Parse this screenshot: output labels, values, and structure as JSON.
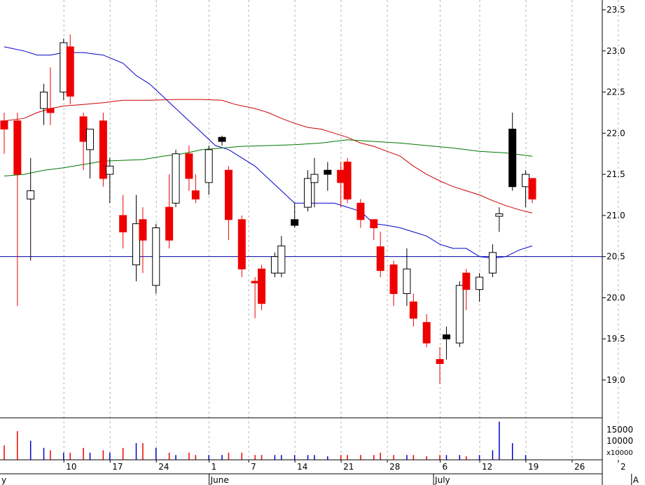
{
  "chart_data": {
    "type": "candlestick",
    "title": "",
    "xlabel": "",
    "ylabel": "",
    "y_ticks": [
      "19.0",
      "19.5",
      "20.0",
      "20.5",
      "21.0",
      "21.5",
      "22.0",
      "22.5",
      "23.0",
      "23.5"
    ],
    "ylim": [
      18.6,
      23.6
    ],
    "day_ticks": [
      {
        "label": "10",
        "x": 10
      },
      {
        "label": "17",
        "x": 17
      },
      {
        "label": "24",
        "x": 24
      },
      {
        "label": "1",
        "x": 32
      },
      {
        "label": "7",
        "x": 38
      },
      {
        "label": "14",
        "x": 45
      },
      {
        "label": "21",
        "x": 52
      },
      {
        "label": "28",
        "x": 59
      },
      {
        "label": "6",
        "x": 67
      },
      {
        "label": "12",
        "x": 73
      },
      {
        "label": "19",
        "x": 80
      },
      {
        "label": "26",
        "x": 87
      },
      {
        "label": "2",
        "x": 94
      }
    ],
    "month_labels": [
      {
        "label": "y",
        "x": 0
      },
      {
        "label": "June",
        "x": 32
      },
      {
        "label": "July",
        "x": 66
      },
      {
        "label": "A",
        "x": 96
      }
    ],
    "horizontal_line": 20.5,
    "candles": [
      {
        "x": 0,
        "o": 22.05,
        "h": 22.25,
        "l": 21.75,
        "c": 22.15,
        "color": "red"
      },
      {
        "x": 2,
        "o": 22.15,
        "h": 22.25,
        "l": 19.9,
        "c": 21.5,
        "color": "red"
      },
      {
        "x": 4,
        "o": 21.2,
        "h": 21.7,
        "l": 20.45,
        "c": 21.3,
        "color": "white"
      },
      {
        "x": 6,
        "o": 22.3,
        "h": 22.6,
        "l": 22.1,
        "c": 22.5,
        "color": "white"
      },
      {
        "x": 7,
        "o": 22.3,
        "h": 22.8,
        "l": 22.1,
        "c": 22.25,
        "color": "red"
      },
      {
        "x": 9,
        "o": 22.5,
        "h": 23.15,
        "l": 22.4,
        "c": 23.1,
        "color": "white"
      },
      {
        "x": 10,
        "o": 23.05,
        "h": 23.2,
        "l": 22.35,
        "c": 22.45,
        "color": "red"
      },
      {
        "x": 12,
        "o": 22.2,
        "h": 22.25,
        "l": 21.55,
        "c": 21.9,
        "color": "red"
      },
      {
        "x": 13,
        "o": 21.8,
        "h": 22.05,
        "l": 21.45,
        "c": 22.05,
        "color": "white"
      },
      {
        "x": 15,
        "o": 22.15,
        "h": 22.25,
        "l": 21.35,
        "c": 21.45,
        "color": "red"
      },
      {
        "x": 16,
        "o": 21.5,
        "h": 21.7,
        "l": 21.15,
        "c": 21.6,
        "color": "white"
      },
      {
        "x": 18,
        "o": 21.0,
        "h": 21.25,
        "l": 20.6,
        "c": 20.8,
        "color": "red"
      },
      {
        "x": 20,
        "o": 20.4,
        "h": 21.25,
        "l": 20.2,
        "c": 20.9,
        "color": "white"
      },
      {
        "x": 21,
        "o": 20.95,
        "h": 21.1,
        "l": 20.3,
        "c": 20.7,
        "color": "red"
      },
      {
        "x": 23,
        "o": 20.15,
        "h": 20.9,
        "l": 20.05,
        "c": 20.85,
        "color": "white"
      },
      {
        "x": 25,
        "o": 21.1,
        "h": 21.5,
        "l": 20.6,
        "c": 20.7,
        "color": "red"
      },
      {
        "x": 26,
        "o": 21.15,
        "h": 21.8,
        "l": 21.1,
        "c": 21.75,
        "color": "white"
      },
      {
        "x": 28,
        "o": 21.75,
        "h": 21.85,
        "l": 21.3,
        "c": 21.45,
        "color": "red"
      },
      {
        "x": 29,
        "o": 21.3,
        "h": 21.5,
        "l": 21.15,
        "c": 21.2,
        "color": "red"
      },
      {
        "x": 31,
        "o": 21.4,
        "h": 21.85,
        "l": 21.25,
        "c": 21.8,
        "color": "white"
      },
      {
        "x": 33,
        "o": 21.9,
        "h": 21.97,
        "l": 21.85,
        "c": 21.95,
        "color": "black"
      },
      {
        "x": 34,
        "o": 21.55,
        "h": 21.6,
        "l": 20.7,
        "c": 20.95,
        "color": "red"
      },
      {
        "x": 36,
        "o": 20.95,
        "h": 21.0,
        "l": 20.25,
        "c": 20.35,
        "color": "red"
      },
      {
        "x": 38,
        "o": 20.2,
        "h": 20.25,
        "l": 19.75,
        "c": 20.18,
        "color": "red"
      },
      {
        "x": 39,
        "o": 20.35,
        "h": 20.4,
        "l": 19.85,
        "c": 19.93,
        "color": "red"
      },
      {
        "x": 41,
        "o": 20.3,
        "h": 20.55,
        "l": 20.25,
        "c": 20.5,
        "color": "white"
      },
      {
        "x": 42,
        "o": 20.3,
        "h": 20.75,
        "l": 20.25,
        "c": 20.63,
        "color": "white"
      },
      {
        "x": 44,
        "o": 20.95,
        "h": 21.15,
        "l": 20.85,
        "c": 20.88,
        "color": "black"
      },
      {
        "x": 46,
        "o": 21.1,
        "h": 21.55,
        "l": 21.05,
        "c": 21.45,
        "color": "white"
      },
      {
        "x": 47,
        "o": 21.4,
        "h": 21.7,
        "l": 21.1,
        "c": 21.5,
        "color": "white"
      },
      {
        "x": 49,
        "o": 21.55,
        "h": 21.65,
        "l": 21.3,
        "c": 21.5,
        "color": "black"
      },
      {
        "x": 51,
        "o": 21.55,
        "h": 21.65,
        "l": 21.1,
        "c": 21.4,
        "color": "red"
      },
      {
        "x": 52,
        "o": 21.65,
        "h": 21.7,
        "l": 21.15,
        "c": 21.2,
        "color": "red"
      },
      {
        "x": 54,
        "o": 21.15,
        "h": 21.2,
        "l": 20.85,
        "c": 20.95,
        "color": "red"
      },
      {
        "x": 56,
        "o": 20.95,
        "h": 20.95,
        "l": 20.7,
        "c": 20.85,
        "color": "red"
      },
      {
        "x": 57,
        "o": 20.62,
        "h": 20.8,
        "l": 20.25,
        "c": 20.33,
        "color": "red"
      },
      {
        "x": 59,
        "o": 20.4,
        "h": 20.45,
        "l": 19.9,
        "c": 20.05,
        "color": "red"
      },
      {
        "x": 61,
        "o": 20.05,
        "h": 20.6,
        "l": 19.9,
        "c": 20.35,
        "color": "white"
      },
      {
        "x": 62,
        "o": 19.95,
        "h": 20.05,
        "l": 19.65,
        "c": 19.75,
        "color": "red"
      },
      {
        "x": 64,
        "o": 19.7,
        "h": 19.8,
        "l": 19.4,
        "c": 19.45,
        "color": "red"
      },
      {
        "x": 66,
        "o": 19.25,
        "h": 19.4,
        "l": 18.95,
        "c": 19.2,
        "color": "red"
      },
      {
        "x": 67,
        "o": 19.5,
        "h": 19.65,
        "l": 19.25,
        "c": 19.55,
        "color": "black"
      },
      {
        "x": 69,
        "o": 19.45,
        "h": 20.2,
        "l": 19.4,
        "c": 20.15,
        "color": "white"
      },
      {
        "x": 70,
        "o": 20.3,
        "h": 20.35,
        "l": 19.85,
        "c": 20.1,
        "color": "red"
      },
      {
        "x": 72,
        "o": 20.1,
        "h": 20.3,
        "l": 19.95,
        "c": 20.25,
        "color": "white"
      },
      {
        "x": 74,
        "o": 20.3,
        "h": 20.65,
        "l": 20.25,
        "c": 20.55,
        "color": "white"
      },
      {
        "x": 75,
        "o": 20.99,
        "h": 21.1,
        "l": 20.8,
        "c": 21.02,
        "color": "white"
      },
      {
        "x": 77,
        "o": 22.05,
        "h": 22.25,
        "l": 21.3,
        "c": 21.35,
        "color": "black"
      },
      {
        "x": 79,
        "o": 21.35,
        "h": 21.55,
        "l": 21.1,
        "c": 21.5,
        "color": "white"
      },
      {
        "x": 80,
        "o": 21.45,
        "h": 21.45,
        "l": 21.15,
        "c": 21.2,
        "color": "red"
      }
    ],
    "series": [
      {
        "color": "#0000cc",
        "points": [
          [
            0,
            23.05
          ],
          [
            3,
            23.0
          ],
          [
            5,
            22.95
          ],
          [
            7,
            22.95
          ],
          [
            9,
            22.98
          ],
          [
            12,
            22.98
          ],
          [
            15,
            22.95
          ],
          [
            18,
            22.85
          ],
          [
            20,
            22.7
          ],
          [
            22,
            22.6
          ],
          [
            24,
            22.45
          ],
          [
            26,
            22.3
          ],
          [
            28,
            22.15
          ],
          [
            30,
            22.0
          ],
          [
            32,
            21.85
          ],
          [
            34,
            21.8
          ],
          [
            36,
            21.7
          ],
          [
            38,
            21.6
          ],
          [
            40,
            21.45
          ],
          [
            42,
            21.3
          ],
          [
            44,
            21.15
          ],
          [
            46,
            21.15
          ],
          [
            48,
            21.15
          ],
          [
            50,
            21.15
          ],
          [
            52,
            21.1
          ],
          [
            54,
            21.05
          ],
          [
            56,
            20.9
          ],
          [
            58,
            20.88
          ],
          [
            60,
            20.85
          ],
          [
            62,
            20.8
          ],
          [
            64,
            20.75
          ],
          [
            66,
            20.65
          ],
          [
            68,
            20.6
          ],
          [
            70,
            20.6
          ],
          [
            72,
            20.5
          ],
          [
            74,
            20.48
          ],
          [
            76,
            20.5
          ],
          [
            78,
            20.58
          ],
          [
            80,
            20.63
          ]
        ]
      },
      {
        "color": "#cc0000",
        "points": [
          [
            0,
            22.15
          ],
          [
            3,
            22.18
          ],
          [
            5,
            22.25
          ],
          [
            7,
            22.3
          ],
          [
            9,
            22.33
          ],
          [
            12,
            22.35
          ],
          [
            15,
            22.37
          ],
          [
            18,
            22.4
          ],
          [
            22,
            22.4
          ],
          [
            26,
            22.41
          ],
          [
            30,
            22.41
          ],
          [
            33,
            22.4
          ],
          [
            35,
            22.35
          ],
          [
            38,
            22.3
          ],
          [
            40,
            22.25
          ],
          [
            42,
            22.18
          ],
          [
            44,
            22.12
          ],
          [
            46,
            22.07
          ],
          [
            48,
            22.05
          ],
          [
            50,
            22.0
          ],
          [
            52,
            21.95
          ],
          [
            54,
            21.88
          ],
          [
            56,
            21.84
          ],
          [
            58,
            21.78
          ],
          [
            60,
            21.72
          ],
          [
            62,
            21.6
          ],
          [
            64,
            21.5
          ],
          [
            66,
            21.42
          ],
          [
            68,
            21.35
          ],
          [
            70,
            21.3
          ],
          [
            72,
            21.25
          ],
          [
            74,
            21.18
          ],
          [
            76,
            21.12
          ],
          [
            78,
            21.07
          ],
          [
            80,
            21.03
          ]
        ]
      },
      {
        "color": "#007700",
        "points": [
          [
            0,
            21.48
          ],
          [
            3,
            21.5
          ],
          [
            6,
            21.55
          ],
          [
            9,
            21.58
          ],
          [
            12,
            21.62
          ],
          [
            15,
            21.66
          ],
          [
            18,
            21.67
          ],
          [
            21,
            21.68
          ],
          [
            24,
            21.72
          ],
          [
            27,
            21.75
          ],
          [
            30,
            21.8
          ],
          [
            33,
            21.82
          ],
          [
            36,
            21.84
          ],
          [
            40,
            21.85
          ],
          [
            44,
            21.86
          ],
          [
            48,
            21.88
          ],
          [
            52,
            21.92
          ],
          [
            56,
            21.9
          ],
          [
            60,
            21.88
          ],
          [
            64,
            21.85
          ],
          [
            68,
            21.82
          ],
          [
            72,
            21.78
          ],
          [
            76,
            21.76
          ],
          [
            80,
            21.72
          ]
        ]
      }
    ],
    "volume_ticks": [
      "15000",
      "10000",
      "x10000"
    ],
    "volume_max": 17000,
    "volumes": [
      {
        "x": 0,
        "v": 6000,
        "color": "red"
      },
      {
        "x": 2,
        "v": 12000,
        "color": "red"
      },
      {
        "x": 4,
        "v": 8000,
        "color": "blue"
      },
      {
        "x": 6,
        "v": 5000,
        "color": "blue"
      },
      {
        "x": 7,
        "v": 4000,
        "color": "red"
      },
      {
        "x": 9,
        "v": 3000,
        "color": "blue"
      },
      {
        "x": 10,
        "v": 3000,
        "color": "red"
      },
      {
        "x": 12,
        "v": 5000,
        "color": "red"
      },
      {
        "x": 13,
        "v": 3000,
        "color": "blue"
      },
      {
        "x": 15,
        "v": 4000,
        "color": "red"
      },
      {
        "x": 16,
        "v": 3000,
        "color": "blue"
      },
      {
        "x": 18,
        "v": 5000,
        "color": "red"
      },
      {
        "x": 20,
        "v": 7000,
        "color": "blue"
      },
      {
        "x": 21,
        "v": 7000,
        "color": "red"
      },
      {
        "x": 23,
        "v": 5000,
        "color": "blue"
      },
      {
        "x": 25,
        "v": 3000,
        "color": "red"
      },
      {
        "x": 26,
        "v": 2000,
        "color": "blue"
      },
      {
        "x": 28,
        "v": 3000,
        "color": "red"
      },
      {
        "x": 29,
        "v": 2000,
        "color": "red"
      },
      {
        "x": 31,
        "v": 2000,
        "color": "blue"
      },
      {
        "x": 33,
        "v": 2000,
        "color": "blue"
      },
      {
        "x": 34,
        "v": 3000,
        "color": "red"
      },
      {
        "x": 36,
        "v": 3000,
        "color": "red"
      },
      {
        "x": 38,
        "v": 2000,
        "color": "red"
      },
      {
        "x": 39,
        "v": 2000,
        "color": "red"
      },
      {
        "x": 41,
        "v": 2000,
        "color": "blue"
      },
      {
        "x": 42,
        "v": 2000,
        "color": "blue"
      },
      {
        "x": 44,
        "v": 2000,
        "color": "blue"
      },
      {
        "x": 46,
        "v": 2000,
        "color": "blue"
      },
      {
        "x": 47,
        "v": 2000,
        "color": "blue"
      },
      {
        "x": 49,
        "v": 1500,
        "color": "blue"
      },
      {
        "x": 51,
        "v": 2000,
        "color": "red"
      },
      {
        "x": 52,
        "v": 2000,
        "color": "red"
      },
      {
        "x": 54,
        "v": 2000,
        "color": "red"
      },
      {
        "x": 56,
        "v": 2000,
        "color": "red"
      },
      {
        "x": 57,
        "v": 3000,
        "color": "red"
      },
      {
        "x": 59,
        "v": 2000,
        "color": "red"
      },
      {
        "x": 61,
        "v": 2000,
        "color": "blue"
      },
      {
        "x": 62,
        "v": 2000,
        "color": "red"
      },
      {
        "x": 64,
        "v": 1500,
        "color": "red"
      },
      {
        "x": 66,
        "v": 2000,
        "color": "red"
      },
      {
        "x": 67,
        "v": 2000,
        "color": "blue"
      },
      {
        "x": 69,
        "v": 2000,
        "color": "blue"
      },
      {
        "x": 70,
        "v": 1500,
        "color": "red"
      },
      {
        "x": 72,
        "v": 2000,
        "color": "blue"
      },
      {
        "x": 74,
        "v": 4000,
        "color": "blue"
      },
      {
        "x": 75,
        "v": 16000,
        "color": "blue"
      },
      {
        "x": 77,
        "v": 7000,
        "color": "blue"
      },
      {
        "x": 79,
        "v": 2000,
        "color": "blue"
      }
    ]
  },
  "colors": {
    "up": "#ffffff",
    "down": "#ee0000",
    "doji": "#000000",
    "ma_short": "#0000cc",
    "ma_mid": "#cc0000",
    "ma_long": "#007700",
    "hline": "#0000aa",
    "volume_red": "#ee0000",
    "volume_blue": "#0000cc",
    "grid": "#b0b0b0"
  }
}
